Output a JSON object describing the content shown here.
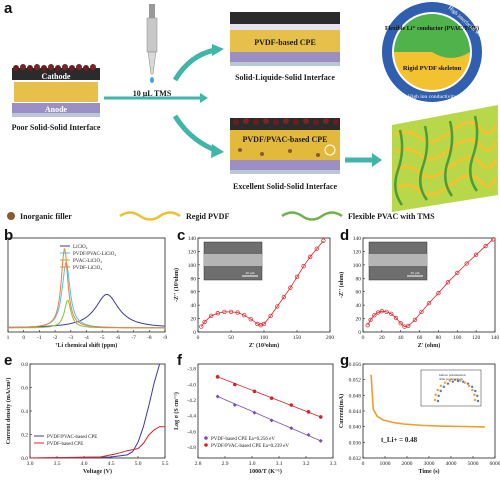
{
  "panel_labels": {
    "a": "a",
    "b": "b",
    "c": "c",
    "d": "d",
    "e": "e",
    "f": "f",
    "g": "g"
  },
  "schematic": {
    "cathode": "Cathode",
    "anode": "Anode",
    "poor_interface": "Poor Solid-Solid Interface",
    "tms_drop": "10 μL TMS",
    "pvdf_cpe": "PVDF-based CPE",
    "sls_interface": "Solid-Liquide-Solid Interface",
    "pvdf_pvac_cpe": "PVDF/PVAC-based CPE",
    "excellent_interface": "Excellent Solid-Solid Interface",
    "circle_top": "Flexible Li⁺ conductor (PVAC/TMS)",
    "circle_bottom": "Rigid PVDF skeleton",
    "ring_left": "High mechanical properties",
    "ring_right": "High interfacial wettability",
    "ring_bottom": "High ion conductivity",
    "legend_filler": "Inorganic filler",
    "legend_pvdf": "Regid PVDF",
    "legend_pvac": "Flexible PVAC with TMS",
    "colors": {
      "filler": "#8b5a2b",
      "pvdf": "#f0c030",
      "pvac": "#6fb24a",
      "arrow": "#3fb6a8"
    }
  },
  "panels": {
    "b": {
      "xlabel": "⁷Li chemical shift (ppm)",
      "xticks": [
        "1",
        "0",
        "-1",
        "-2",
        "-3",
        "-4",
        "-5",
        "-6",
        "-7",
        "-8",
        "-9"
      ],
      "legend": [
        "LiClO₄",
        "PVDF/PVAC-LiClO₄",
        "PVAC-LiClO₄",
        "PVDF-LiClO₄"
      ]
    },
    "c": {
      "ylabel": "-Z'' (10³ohm)",
      "xlabel": "Z' (10³ohm)",
      "xticks": [
        "0",
        "50",
        "100",
        "150",
        "200"
      ],
      "yticks": [
        "0",
        "20",
        "40",
        "60",
        "80",
        "100",
        "120",
        "140"
      ],
      "scale": "20 μm"
    },
    "d": {
      "ylabel": "-Z'' (ohm)",
      "xlabel": "Z' (ohm)",
      "xticks": [
        "0",
        "20",
        "40",
        "60",
        "80",
        "100",
        "120",
        "140"
      ],
      "yticks": [
        "0",
        "20",
        "40",
        "60",
        "80",
        "100",
        "120",
        "140"
      ],
      "scale": "20 μm"
    },
    "e": {
      "ylabel": "Current density (mA/cm²)",
      "xlabel": "Voltage (V)",
      "xticks": [
        "3.0",
        "3.5",
        "4.0",
        "4.5",
        "5.0",
        "5.5"
      ],
      "yticks": [
        "0.0",
        "0.2",
        "0.4",
        "0.6",
        "0.8"
      ],
      "legend": [
        "PVDF/PVAC-based CPE",
        "PVDF-based CPE"
      ]
    },
    "f": {
      "ylabel": "Log σ (S cm⁻¹)",
      "xlabel": "1000/T (K⁻¹)",
      "xticks": [
        "2.8",
        "2.9",
        "3.0",
        "3.1",
        "3.2",
        "3.3"
      ],
      "yticks": [
        "-3.8",
        "-4.0",
        "-4.2",
        "-4.4",
        "-4.6",
        "-4.8"
      ],
      "legend": [
        "PVDF-based CPE Ea=0.256 eV",
        "PVDF/PVAC-based CPE Ea=0.239 eV"
      ]
    },
    "g": {
      "ylabel": "Current(mA)",
      "xlabel": "Time (s)",
      "xticks": [
        "0",
        "1000",
        "2000",
        "3000",
        "4000",
        "5000",
        "6000"
      ],
      "yticks": [
        "0.032",
        "0.036",
        "0.040",
        "0.044",
        "0.048",
        "0.052",
        "0.056"
      ],
      "annotation": "t_Li+ = 0.48",
      "inset_legend": [
        "before polarization",
        "after polarization"
      ]
    }
  },
  "chart_data": [
    {
      "panel": "b",
      "type": "line",
      "xlabel": "⁷Li chemical shift (ppm)",
      "xlim": [
        1,
        -9
      ],
      "series": [
        {
          "name": "LiClO₄",
          "color": "#3b3b98",
          "center": -5.3,
          "height": 0.42,
          "width": 1.8
        },
        {
          "name": "PVDF/PVAC-LiClO₄",
          "color": "#4ec3e0",
          "center": -2.7,
          "height": 0.82,
          "width": 0.6
        },
        {
          "name": "PVAC-LiClO₄",
          "color": "#8cbf3f",
          "center": -2.8,
          "height": 0.35,
          "width": 0.5
        },
        {
          "name": "PVDF-LiClO₄",
          "color": "#f07f3c",
          "center": -2.6,
          "height": 1.0,
          "width": 0.5
        }
      ]
    },
    {
      "panel": "c",
      "type": "scatter",
      "xlabel": "Z' (10³ohm)",
      "ylabel": "-Z'' (10³ohm)",
      "xlim": [
        0,
        200
      ],
      "ylim": [
        0,
        140
      ],
      "x": [
        5,
        10,
        20,
        30,
        40,
        50,
        60,
        70,
        80,
        90,
        95,
        100,
        110,
        120,
        130,
        140,
        150,
        160,
        170,
        180,
        190
      ],
      "y": [
        8,
        15,
        24,
        28,
        30,
        30,
        29,
        25,
        19,
        12,
        10,
        12,
        24,
        38,
        52,
        66,
        82,
        98,
        112,
        124,
        136
      ]
    },
    {
      "panel": "d",
      "type": "scatter",
      "xlabel": "Z' (ohm)",
      "ylabel": "-Z'' (ohm)",
      "xlim": [
        0,
        140
      ],
      "ylim": [
        0,
        140
      ],
      "x": [
        5,
        8,
        12,
        16,
        20,
        25,
        30,
        35,
        40,
        44,
        48,
        55,
        62,
        70,
        80,
        90,
        100,
        110,
        120,
        130,
        138
      ],
      "y": [
        10,
        18,
        25,
        29,
        31,
        30,
        27,
        21,
        13,
        8,
        9,
        18,
        30,
        43,
        58,
        74,
        88,
        102,
        115,
        128,
        138
      ]
    },
    {
      "panel": "e",
      "type": "line",
      "xlabel": "Voltage (V)",
      "ylabel": "Current density (mA/cm²)",
      "xlim": [
        3.0,
        5.5
      ],
      "ylim": [
        0,
        0.9
      ],
      "series": [
        {
          "name": "PVDF/PVAC-based CPE",
          "color": "#3b3b98",
          "x": [
            3.0,
            4.5,
            4.8,
            4.9,
            5.0,
            5.1,
            5.2,
            5.3,
            5.4
          ],
          "y": [
            0,
            0.01,
            0.03,
            0.06,
            0.15,
            0.3,
            0.5,
            0.72,
            0.9
          ]
        },
        {
          "name": "PVDF-based CPE",
          "color": "#d9232a",
          "x": [
            3.0,
            4.3,
            4.6,
            4.8,
            5.0,
            5.1,
            5.2,
            5.3,
            5.4,
            5.5
          ],
          "y": [
            0,
            0.01,
            0.04,
            0.07,
            0.09,
            0.14,
            0.22,
            0.27,
            0.3,
            0.3
          ]
        }
      ]
    },
    {
      "panel": "f",
      "type": "scatter",
      "xlabel": "1000/T (K⁻¹)",
      "ylabel": "Log σ (S cm⁻¹)",
      "xlim": [
        2.8,
        3.35
      ],
      "ylim": [
        -4.8,
        -3.7
      ],
      "series": [
        {
          "name": "PVDF-based CPE Ea=0.256 eV",
          "color": "#7b4fb0",
          "x": [
            2.88,
            2.95,
            3.03,
            3.1,
            3.18,
            3.25,
            3.3
          ],
          "y": [
            -4.08,
            -4.18,
            -4.27,
            -4.36,
            -4.45,
            -4.53,
            -4.6
          ]
        },
        {
          "name": "PVDF/PVAC-based CPE Ea=0.239 eV",
          "color": "#d9232a",
          "x": [
            2.88,
            2.95,
            3.03,
            3.1,
            3.18,
            3.25,
            3.3
          ],
          "y": [
            -3.85,
            -3.94,
            -4.02,
            -4.1,
            -4.18,
            -4.26,
            -4.32
          ]
        }
      ]
    },
    {
      "panel": "g",
      "type": "line",
      "xlabel": "Time (s)",
      "ylabel": "Current(mA)",
      "xlim": [
        0,
        6500
      ],
      "ylim": [
        0.032,
        0.058
      ],
      "series": [
        {
          "name": "current",
          "color": "#f39c2b",
          "x": [
            400,
            500,
            700,
            1000,
            1500,
            2000,
            3000,
            4000,
            5000,
            6000
          ],
          "y": [
            0.055,
            0.0455,
            0.0435,
            0.0425,
            0.0418,
            0.0414,
            0.041,
            0.0408,
            0.0407,
            0.0406
          ]
        }
      ]
    }
  ]
}
